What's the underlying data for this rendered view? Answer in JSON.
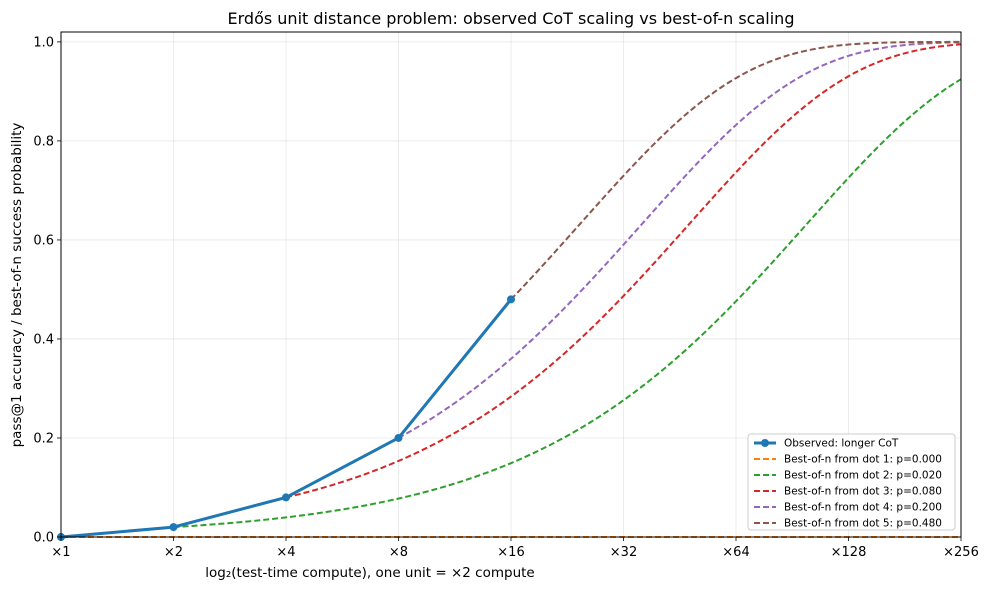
{
  "chart_data": {
    "type": "line",
    "title": "Erdős unit distance problem: observed CoT scaling vs best-of-n scaling",
    "xlabel": "log₂(test-time compute), one unit = ×2 compute",
    "ylabel": "pass@1 accuracy / best-of-n success probability",
    "xlim": [
      0,
      8
    ],
    "ylim": [
      0,
      1.02
    ],
    "x_ticks": [
      0,
      1,
      2,
      3,
      4,
      5,
      6,
      7,
      8
    ],
    "x_tick_labels": [
      "×1",
      "×2",
      "×4",
      "×8",
      "×16",
      "×32",
      "×64",
      "×128",
      "×256"
    ],
    "y_ticks": [
      0,
      0.2,
      0.4,
      0.6,
      0.8,
      1.0
    ],
    "y_tick_labels": [
      "0.0",
      "0.2",
      "0.4",
      "0.6",
      "0.8",
      "1.0"
    ],
    "grid": true,
    "legend_position": "lower-right",
    "observed": {
      "name": "Observed: longer CoT",
      "color": "#1f77b4",
      "x": [
        0,
        1,
        2,
        3,
        4
      ],
      "y": [
        0.0,
        0.02,
        0.08,
        0.2,
        0.48
      ]
    },
    "series": [
      {
        "name": "Best-of-n from dot 1: p=0.000",
        "start_x": 0,
        "p": 0.0,
        "color": "#ff7f0e",
        "style": "dashed"
      },
      {
        "name": "Best-of-n from dot 2: p=0.020",
        "start_x": 1,
        "p": 0.02,
        "color": "#2ca02c",
        "style": "dashed"
      },
      {
        "name": "Best-of-n from dot 3: p=0.080",
        "start_x": 2,
        "p": 0.08,
        "color": "#d62728",
        "style": "dashed"
      },
      {
        "name": "Best-of-n from dot 4: p=0.200",
        "start_x": 3,
        "p": 0.2,
        "color": "#9467bd",
        "style": "dashed"
      },
      {
        "name": "Best-of-n from dot 5: p=0.480",
        "start_x": 4,
        "p": 0.48,
        "color": "#8c564b",
        "style": "dashed"
      }
    ]
  }
}
